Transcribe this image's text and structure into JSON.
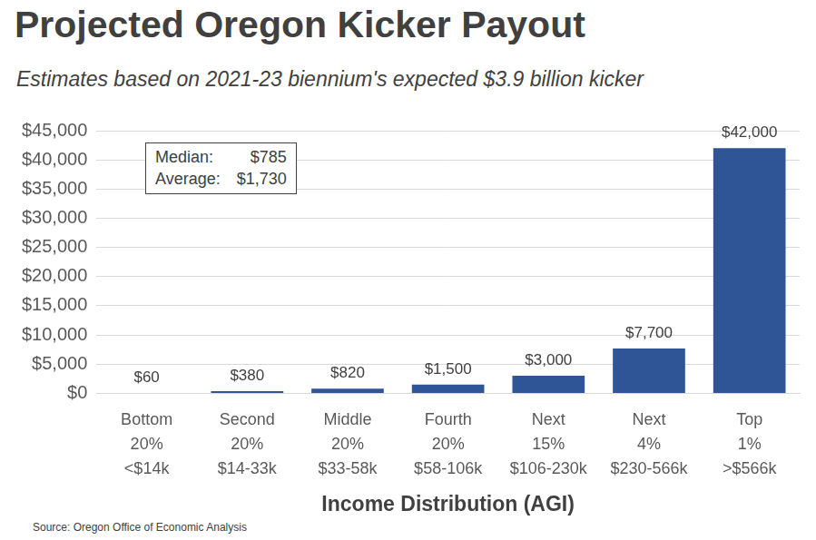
{
  "chart_data": {
    "type": "bar",
    "title": "Projected Oregon Kicker Payout",
    "subtitle": "Estimates based on 2021-23 biennium's expected $3.9 billion kicker",
    "categories": [
      "Bottom 20%",
      "Second 20%",
      "Middle 20%",
      "Fourth 20%",
      "Next 15%",
      "Next 4%",
      "Top 1%"
    ],
    "income_ranges": [
      "<$14k",
      "$14-33k",
      "$33-58k",
      "$58-106k",
      "$106-230k",
      "$230-566k",
      ">$566k"
    ],
    "values": [
      60,
      380,
      820,
      1500,
      3000,
      7700,
      42000
    ],
    "value_labels": [
      "$60",
      "$380",
      "$820",
      "$1,500",
      "$3,000",
      "$7,700",
      "$42,000"
    ],
    "color": "#2f5597",
    "x_label": "Income Distribution (AGI)",
    "ylim": [
      0,
      45000
    ],
    "yticks": [
      {
        "value": 0,
        "label": "$0"
      },
      {
        "value": 5000,
        "label": "$5,000"
      },
      {
        "value": 10000,
        "label": "$10,000"
      },
      {
        "value": 15000,
        "label": "$15,000"
      },
      {
        "value": 20000,
        "label": "$20,000"
      },
      {
        "value": 25000,
        "label": "$25,000"
      },
      {
        "value": 30000,
        "label": "$30,000"
      },
      {
        "value": 35000,
        "label": "$35,000"
      },
      {
        "value": 40000,
        "label": "$40,000"
      },
      {
        "value": 45000,
        "label": "$45,000"
      }
    ],
    "grid": true,
    "data_labels": true,
    "annotations": [
      {
        "label": "Median:",
        "text": "$785"
      },
      {
        "label": "Average:",
        "text": "$1,730"
      }
    ],
    "source": "Source: Oregon Office of Economic Analysis"
  }
}
